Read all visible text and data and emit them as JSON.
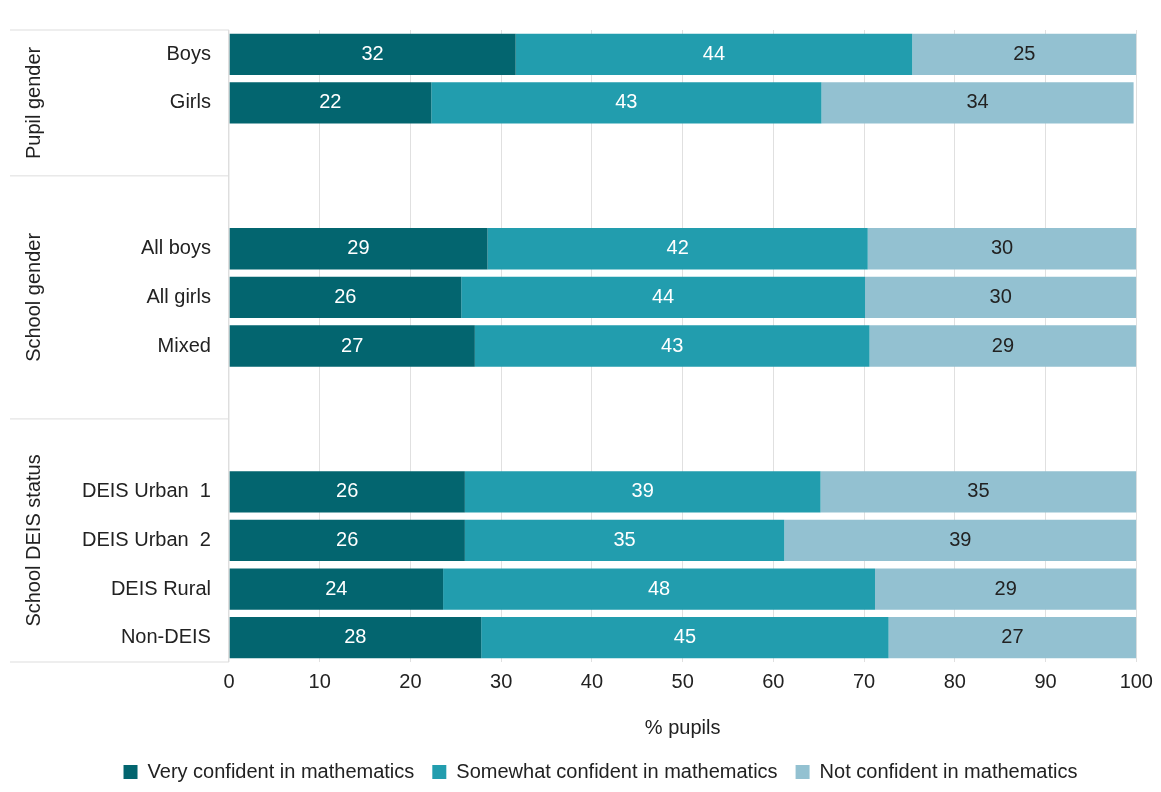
{
  "chart_data": {
    "type": "bar",
    "orientation": "horizontal",
    "stacked": true,
    "categories": [
      "Boys",
      "Girls",
      null,
      null,
      "All boys",
      "All girls",
      "Mixed",
      null,
      null,
      "DEIS Urban  1",
      "DEIS Urban  2",
      "DEIS Rural",
      "Non-DEIS"
    ],
    "series": [
      {
        "name": "Very confident in mathematics",
        "color": "#03656f",
        "values": [
          31.6,
          22.3,
          null,
          null,
          28.5,
          25.6,
          27.1,
          null,
          null,
          26.0,
          26.0,
          23.6,
          27.8
        ],
        "value_labels": [
          "32",
          "22",
          null,
          null,
          "29",
          "26",
          "27",
          null,
          null,
          "26",
          "26",
          "24",
          "28"
        ]
      },
      {
        "name": "Somewhat confident in mathematics",
        "color": "#229dae",
        "values": [
          43.7,
          43.0,
          null,
          null,
          41.9,
          44.5,
          43.5,
          null,
          null,
          39.2,
          35.2,
          47.6,
          44.9
        ],
        "value_labels": [
          "44",
          "43",
          null,
          null,
          "42",
          "44",
          "43",
          null,
          null,
          "39",
          "35",
          "48",
          "45"
        ]
      },
      {
        "name": "Not confident in mathematics",
        "color": "#93c1d1",
        "values": [
          24.7,
          34.4,
          null,
          null,
          29.6,
          29.9,
          29.4,
          null,
          null,
          34.8,
          38.8,
          28.8,
          27.3
        ],
        "value_labels": [
          "25",
          "34",
          null,
          null,
          "30",
          "30",
          "29",
          null,
          null,
          "35",
          "39",
          "29",
          "27"
        ]
      }
    ],
    "xlim": [
      0,
      100
    ],
    "xticks": [
      0,
      10,
      20,
      30,
      40,
      50,
      60,
      70,
      80,
      90,
      100
    ],
    "xlabel": "% pupils",
    "grid": "x",
    "legend": "bottom",
    "annotations": [
      "Pupil gender",
      "School gender",
      "School DEIS status"
    ]
  }
}
